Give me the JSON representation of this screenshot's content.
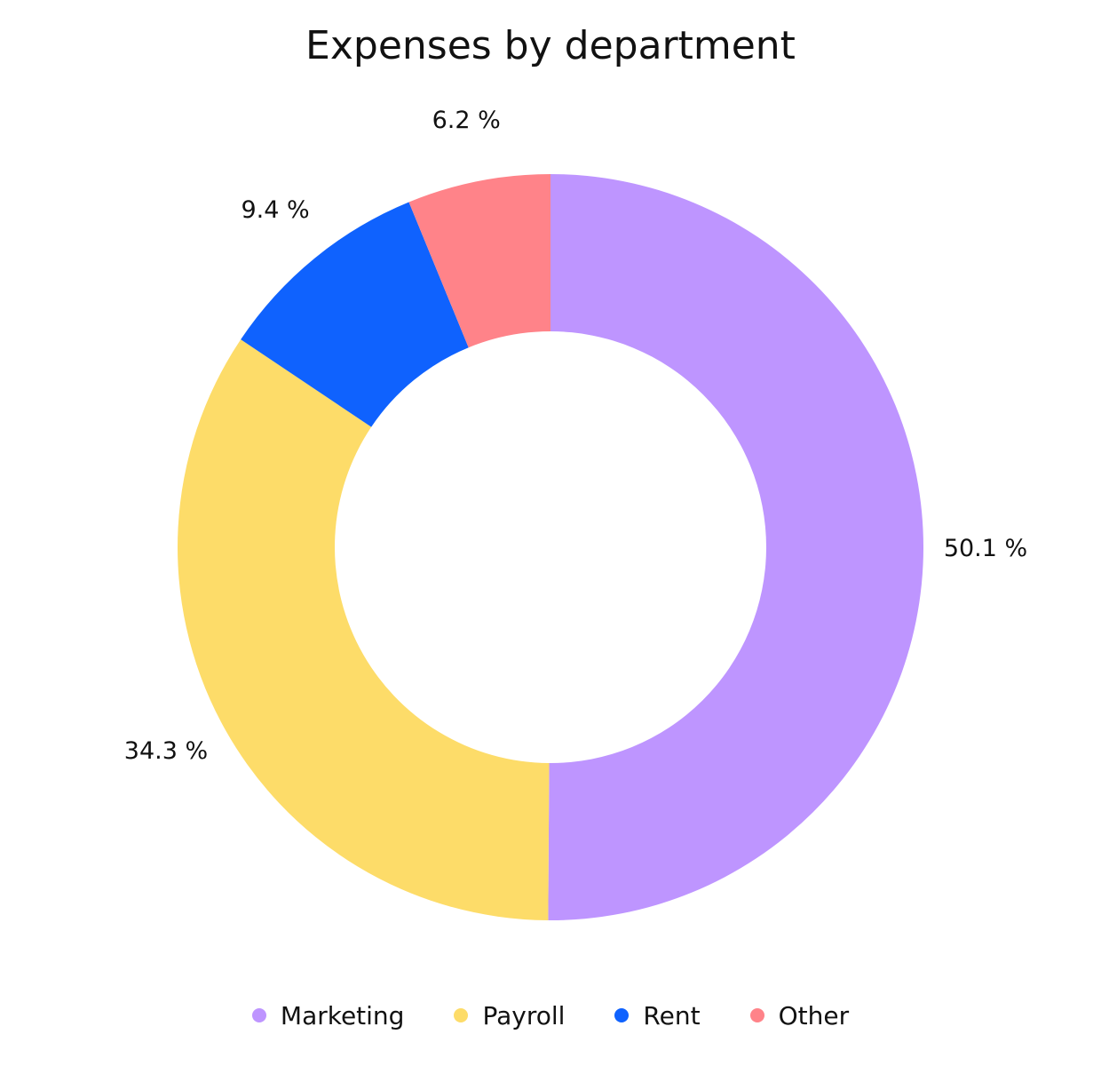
{
  "chart_data": {
    "type": "pie",
    "variant": "donut",
    "title": "Expenses by department",
    "categories": [
      "Marketing",
      "Payroll",
      "Rent",
      "Other"
    ],
    "values": [
      50.1,
      34.3,
      9.4,
      6.2
    ],
    "labels": [
      "50.1 %",
      "34.3 %",
      "9.4 %",
      "6.2 %"
    ],
    "colors": [
      "#be95ff",
      "#fddc69",
      "#0f62fe",
      "#ff8389"
    ],
    "legend": "bottom-center",
    "start": "top",
    "direction": "clockwise"
  }
}
